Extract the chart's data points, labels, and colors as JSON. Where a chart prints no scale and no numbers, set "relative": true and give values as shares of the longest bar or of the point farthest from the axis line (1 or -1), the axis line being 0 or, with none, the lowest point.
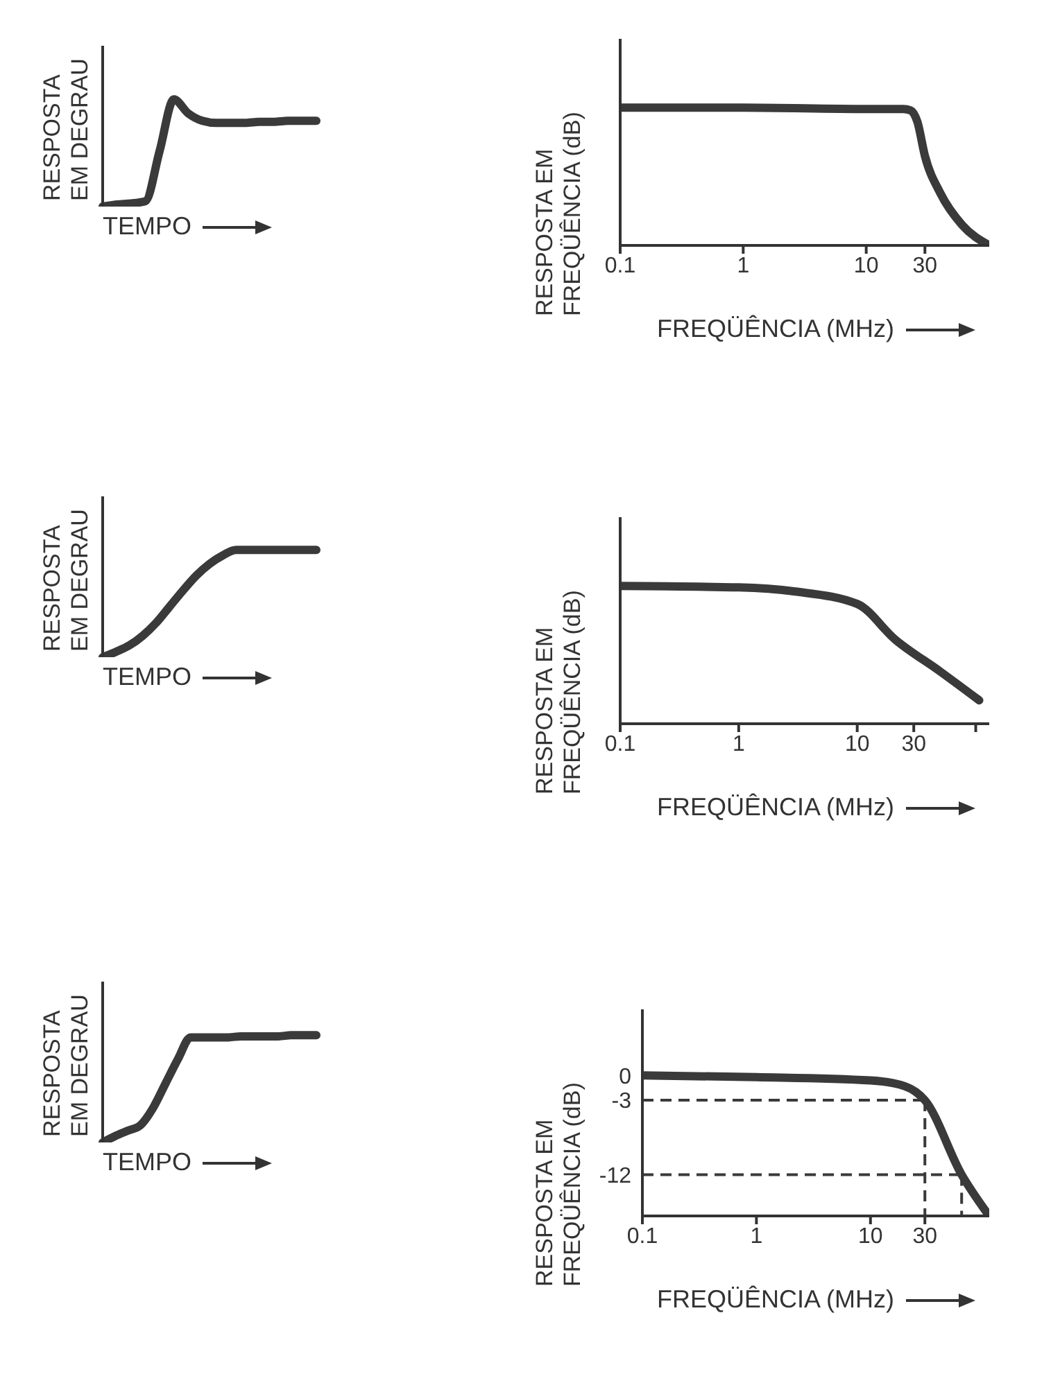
{
  "chart_data": [
    {
      "type": "line",
      "relative": true,
      "tick_labels": false,
      "ylabel": "RESPOSTA EM DEGRAU",
      "xlabel": "TEMPO",
      "color": "#3a3a3a",
      "categories": [
        null,
        null,
        null,
        null,
        null,
        null,
        null,
        null,
        null,
        null,
        null,
        null,
        null,
        null,
        null,
        null
      ],
      "values": [
        0,
        0.02,
        0.03,
        0.05,
        0.52,
        1,
        0.87,
        0.8,
        0.78,
        0.78,
        0.78,
        0.79,
        0.79,
        0.8,
        0.8,
        0.8
      ]
    },
    {
      "type": "line",
      "relative": true,
      "log": "x",
      "tick_labels": "x",
      "ylabel": "RESPOSTA EM FREQÜÊNCIA (dB)",
      "xlabel": "FREQÜÊNCIA (MHz)",
      "color": "#3a3a3a",
      "xlim": [
        0.1,
        100
      ],
      "xticks": [
        0.1,
        1,
        10,
        30
      ],
      "x": [
        0.1,
        1,
        10,
        20,
        23,
        26,
        30,
        40,
        60,
        100
      ],
      "values": [
        1,
        1,
        0.99,
        0.99,
        0.98,
        0.9,
        0.65,
        0.38,
        0.15,
        0
      ]
    },
    {
      "type": "line",
      "relative": true,
      "tick_labels": false,
      "ylabel": "RESPOSTA EM DEGRAU",
      "xlabel": "TEMPO",
      "color": "#3a3a3a",
      "categories": [
        null,
        null,
        null,
        null,
        null,
        null,
        null,
        null,
        null,
        null,
        null,
        null,
        null,
        null,
        null,
        null,
        null
      ],
      "values": [
        0,
        0.05,
        0.11,
        0.2,
        0.32,
        0.47,
        0.62,
        0.76,
        0.87,
        0.95,
        1,
        1,
        1,
        1,
        1,
        1,
        1
      ]
    },
    {
      "type": "line",
      "relative": true,
      "log": "x",
      "tick_labels": "x",
      "ylabel": "RESPOSTA EM FREQÜÊNCIA (dB)",
      "xlabel": "FREQÜÊNCIA (MHz)",
      "color": "#3a3a3a",
      "xlim": [
        0.1,
        130
      ],
      "xticks": [
        0.1,
        1,
        10,
        30,
        {
          "value": 100,
          "label": null
        }
      ],
      "x": [
        0.1,
        1,
        3,
        10,
        21,
        50,
        107
      ],
      "values": [
        1,
        0.99,
        0.96,
        0.87,
        0.61,
        0.38,
        0.17
      ]
    },
    {
      "type": "line",
      "relative": true,
      "tick_labels": false,
      "ylabel": "RESPOSTA EM DEGRAU",
      "xlabel": "TEMPO",
      "color": "#3a3a3a",
      "categories": [
        null,
        null,
        null,
        null,
        null,
        null,
        null,
        null,
        null,
        null,
        null,
        null,
        null,
        null,
        null,
        null,
        null,
        null
      ],
      "values": [
        0,
        0.06,
        0.11,
        0.16,
        0.32,
        0.55,
        0.78,
        0.98,
        0.98,
        0.98,
        0.98,
        0.99,
        0.99,
        0.99,
        0.99,
        1,
        1,
        1
      ]
    },
    {
      "type": "line",
      "log": "x",
      "ylabel": "RESPOSTA EM FREQÜÊNCIA (dB)",
      "xlabel": "FREQÜÊNCIA (MHz)",
      "color": "#3a3a3a",
      "xlim": [
        0.1,
        110
      ],
      "xticks": [
        0.1,
        1,
        10,
        30
      ],
      "ylim": [
        -17,
        8
      ],
      "yticks": [
        0,
        -3,
        -12
      ],
      "x": [
        0.1,
        1,
        10,
        20,
        25,
        30,
        63,
        110
      ],
      "values": [
        0,
        -0.2,
        -0.6,
        -1.3,
        -2,
        -3,
        -12,
        -17
      ],
      "ref_lines": [
        {
          "axis": "y",
          "value": -3,
          "line_style": "dashed",
          "color": "#3a3a3a"
        },
        {
          "axis": "y",
          "value": -12,
          "line_style": "dashed",
          "color": "#3a3a3a"
        },
        {
          "axis": "x",
          "value": 30,
          "line_style": "dashed",
          "color": "#3a3a3a"
        },
        {
          "axis": "x",
          "value": 63,
          "line_style": "dashed",
          "color": "#3a3a3a"
        }
      ]
    }
  ]
}
